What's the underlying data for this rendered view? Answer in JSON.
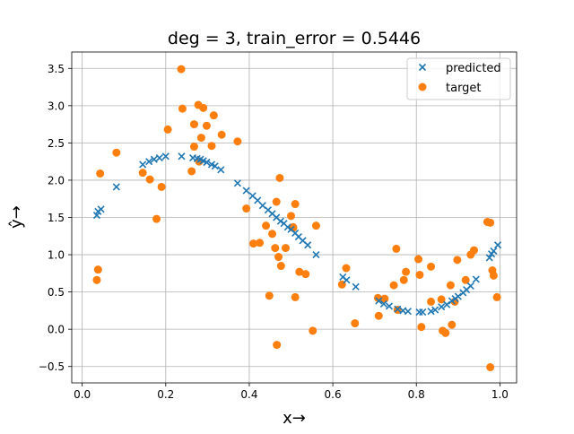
{
  "chart_data": {
    "type": "scatter",
    "title": "deg = 3, train_error = 0.5446",
    "xlabel": "x→",
    "ylabel": "ŷ→",
    "xlim": [
      -0.025,
      1.04
    ],
    "ylim": [
      -0.72,
      3.72
    ],
    "xticks": [
      0.0,
      0.2,
      0.4,
      0.6,
      0.8,
      1.0
    ],
    "xtick_labels": [
      "0.0",
      "0.2",
      "0.4",
      "0.6",
      "0.8",
      "1.0"
    ],
    "yticks": [
      -0.5,
      0.0,
      0.5,
      1.0,
      1.5,
      2.0,
      2.5,
      3.0,
      3.5
    ],
    "ytick_labels": [
      "−0.5",
      "0.0",
      "0.5",
      "1.0",
      "1.5",
      "2.0",
      "2.5",
      "3.0",
      "3.5"
    ],
    "grid": true,
    "legend_position": "top-right",
    "colors": {
      "predicted": "#1f77b4",
      "target": "#ff7f0e"
    },
    "series": [
      {
        "name": "predicted",
        "marker": "x",
        "points": [
          [
            0.035,
            1.53
          ],
          [
            0.038,
            1.58
          ],
          [
            0.045,
            1.61
          ],
          [
            0.082,
            1.91
          ],
          [
            0.145,
            2.21
          ],
          [
            0.16,
            2.25
          ],
          [
            0.172,
            2.28
          ],
          [
            0.185,
            2.3
          ],
          [
            0.2,
            2.32
          ],
          [
            0.238,
            2.32
          ],
          [
            0.265,
            2.3
          ],
          [
            0.275,
            2.29
          ],
          [
            0.283,
            2.28
          ],
          [
            0.29,
            2.26
          ],
          [
            0.298,
            2.24
          ],
          [
            0.31,
            2.21
          ],
          [
            0.318,
            2.19
          ],
          [
            0.332,
            2.14
          ],
          [
            0.372,
            1.96
          ],
          [
            0.393,
            1.86
          ],
          [
            0.408,
            1.79
          ],
          [
            0.42,
            1.73
          ],
          [
            0.432,
            1.66
          ],
          [
            0.445,
            1.6
          ],
          [
            0.455,
            1.55
          ],
          [
            0.465,
            1.5
          ],
          [
            0.475,
            1.45
          ],
          [
            0.483,
            1.42
          ],
          [
            0.492,
            1.37
          ],
          [
            0.5,
            1.34
          ],
          [
            0.51,
            1.29
          ],
          [
            0.518,
            1.24
          ],
          [
            0.528,
            1.19
          ],
          [
            0.54,
            1.13
          ],
          [
            0.56,
            1.0
          ],
          [
            0.624,
            0.7
          ],
          [
            0.633,
            0.66
          ],
          [
            0.655,
            0.57
          ],
          [
            0.71,
            0.38
          ],
          [
            0.722,
            0.34
          ],
          [
            0.735,
            0.31
          ],
          [
            0.755,
            0.27
          ],
          [
            0.768,
            0.25
          ],
          [
            0.78,
            0.24
          ],
          [
            0.807,
            0.23
          ],
          [
            0.815,
            0.23
          ],
          [
            0.835,
            0.24
          ],
          [
            0.845,
            0.26
          ],
          [
            0.86,
            0.3
          ],
          [
            0.873,
            0.33
          ],
          [
            0.885,
            0.38
          ],
          [
            0.893,
            0.41
          ],
          [
            0.9,
            0.44
          ],
          [
            0.912,
            0.49
          ],
          [
            0.92,
            0.53
          ],
          [
            0.93,
            0.58
          ],
          [
            0.943,
            0.67
          ],
          [
            0.975,
            0.96
          ],
          [
            0.98,
            1.01
          ],
          [
            0.985,
            1.05
          ],
          [
            0.995,
            1.13
          ]
        ]
      },
      {
        "name": "target",
        "marker": "o",
        "points": [
          [
            0.035,
            0.66
          ],
          [
            0.038,
            0.8
          ],
          [
            0.043,
            2.09
          ],
          [
            0.082,
            2.37
          ],
          [
            0.145,
            2.1
          ],
          [
            0.162,
            2.01
          ],
          [
            0.178,
            1.48
          ],
          [
            0.19,
            1.91
          ],
          [
            0.205,
            2.68
          ],
          [
            0.237,
            3.49
          ],
          [
            0.24,
            2.96
          ],
          [
            0.262,
            2.12
          ],
          [
            0.268,
            2.75
          ],
          [
            0.268,
            2.45
          ],
          [
            0.278,
            3.01
          ],
          [
            0.28,
            2.25
          ],
          [
            0.285,
            2.57
          ],
          [
            0.29,
            2.97
          ],
          [
            0.298,
            2.73
          ],
          [
            0.31,
            2.46
          ],
          [
            0.315,
            2.87
          ],
          [
            0.334,
            2.61
          ],
          [
            0.372,
            2.52
          ],
          [
            0.393,
            1.62
          ],
          [
            0.41,
            1.15
          ],
          [
            0.425,
            1.16
          ],
          [
            0.44,
            1.39
          ],
          [
            0.448,
            0.45
          ],
          [
            0.455,
            1.28
          ],
          [
            0.462,
            1.09
          ],
          [
            0.465,
            1.71
          ],
          [
            0.466,
            -0.21
          ],
          [
            0.47,
            0.97
          ],
          [
            0.473,
            2.03
          ],
          [
            0.476,
            0.85
          ],
          [
            0.487,
            1.09
          ],
          [
            0.5,
            1.52
          ],
          [
            0.505,
            1.36
          ],
          [
            0.505,
            1.37
          ],
          [
            0.51,
            0.43
          ],
          [
            0.51,
            1.68
          ],
          [
            0.52,
            0.77
          ],
          [
            0.535,
            0.74
          ],
          [
            0.552,
            -0.02
          ],
          [
            0.56,
            1.39
          ],
          [
            0.622,
            0.6
          ],
          [
            0.632,
            0.82
          ],
          [
            0.653,
            0.08
          ],
          [
            0.708,
            0.42
          ],
          [
            0.71,
            0.18
          ],
          [
            0.724,
            0.41
          ],
          [
            0.746,
            0.59
          ],
          [
            0.752,
            1.08
          ],
          [
            0.755,
            0.26
          ],
          [
            0.77,
            0.66
          ],
          [
            0.775,
            0.77
          ],
          [
            0.805,
            0.94
          ],
          [
            0.808,
            0.73
          ],
          [
            0.812,
            0.03
          ],
          [
            0.835,
            0.84
          ],
          [
            0.835,
            0.37
          ],
          [
            0.86,
            0.4
          ],
          [
            0.863,
            -0.02
          ],
          [
            0.87,
            -0.05
          ],
          [
            0.882,
            0.59
          ],
          [
            0.885,
            0.06
          ],
          [
            0.892,
            0.37
          ],
          [
            0.898,
            0.93
          ],
          [
            0.918,
            0.66
          ],
          [
            0.93,
            1.0
          ],
          [
            0.938,
            1.06
          ],
          [
            0.97,
            1.44
          ],
          [
            0.977,
            1.43
          ],
          [
            0.977,
            -0.51
          ],
          [
            0.982,
            0.79
          ],
          [
            0.985,
            0.72
          ],
          [
            0.993,
            0.43
          ]
        ]
      }
    ]
  }
}
